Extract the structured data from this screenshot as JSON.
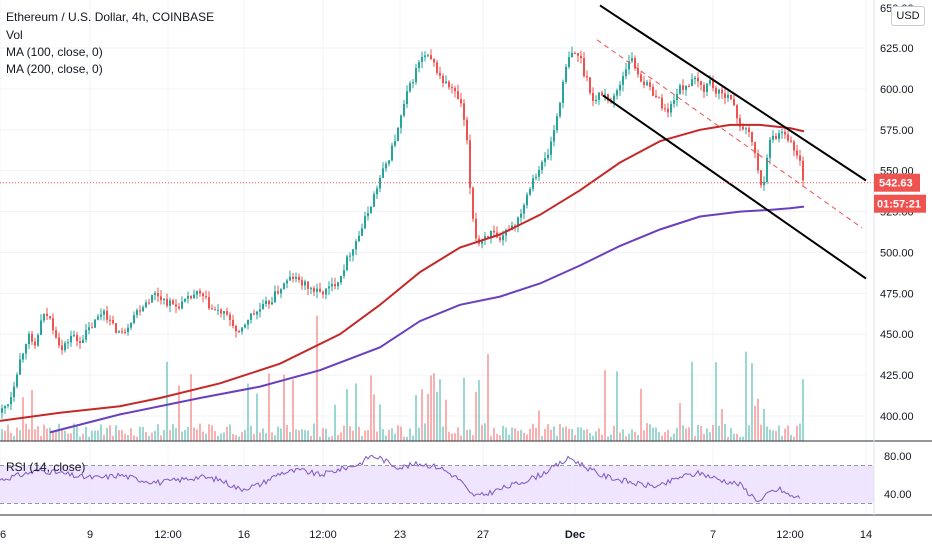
{
  "legend": {
    "title": "Ethereum / U.S. Dollar, 4h, COINBASE",
    "vol": "Vol",
    "ma100": "MA (100, close, 0)",
    "ma200": "MA (200, close, 0)",
    "rsi": "RSI (14, close)"
  },
  "currency_button": "USD",
  "price_labels": {
    "last_price": "542.63",
    "countdown": "01:57:21"
  },
  "colors": {
    "up": "#26a69a",
    "down": "#ef5350",
    "ma100": "#c62828",
    "ma200": "#6a3fbf",
    "rsi_line": "#7e57c2",
    "rsi_band": "#e9dcff",
    "last_price": "#ef5350"
  },
  "chart_data": [
    {
      "type": "candlestick",
      "title": "Ethereum / U.S. Dollar, 4h, COINBASE",
      "ylim": [
        385,
        655
      ],
      "y_ticks": [
        "625.00",
        "600.00",
        "575.00",
        "550.00",
        "525.00",
        "500.00",
        "475.00",
        "450.00",
        "425.00",
        "400.00"
      ],
      "x_ticks": [
        "6",
        "9",
        "12:00",
        "16",
        "12:00",
        "23",
        "27",
        "Dec",
        "7",
        "12:00",
        "14"
      ],
      "last_price": 542.63,
      "anchors": [
        [
          0,
          402
        ],
        [
          10,
          410
        ],
        [
          18,
          430
        ],
        [
          28,
          450
        ],
        [
          34,
          440
        ],
        [
          42,
          460
        ],
        [
          48,
          462
        ],
        [
          56,
          450
        ],
        [
          62,
          440
        ],
        [
          72,
          450
        ],
        [
          78,
          445
        ],
        [
          88,
          452
        ],
        [
          98,
          460
        ],
        [
          104,
          465
        ],
        [
          112,
          455
        ],
        [
          122,
          450
        ],
        [
          134,
          462
        ],
        [
          146,
          470
        ],
        [
          156,
          475
        ],
        [
          166,
          470
        ],
        [
          176,
          467
        ],
        [
          186,
          470
        ],
        [
          196,
          475
        ],
        [
          204,
          472
        ],
        [
          212,
          465
        ],
        [
          222,
          463
        ],
        [
          232,
          458
        ],
        [
          238,
          448
        ],
        [
          248,
          460
        ],
        [
          260,
          465
        ],
        [
          270,
          470
        ],
        [
          280,
          478
        ],
        [
          292,
          485
        ],
        [
          300,
          482
        ],
        [
          310,
          478
        ],
        [
          320,
          475
        ],
        [
          330,
          478
        ],
        [
          340,
          485
        ],
        [
          350,
          500
        ],
        [
          360,
          512
        ],
        [
          370,
          528
        ],
        [
          380,
          545
        ],
        [
          390,
          560
        ],
        [
          398,
          575
        ],
        [
          406,
          595
        ],
        [
          414,
          608
        ],
        [
          420,
          618
        ],
        [
          426,
          620
        ],
        [
          434,
          615
        ],
        [
          442,
          605
        ],
        [
          452,
          600
        ],
        [
          460,
          592
        ],
        [
          466,
          575
        ],
        [
          470,
          540
        ],
        [
          474,
          515
        ],
        [
          478,
          505
        ],
        [
          484,
          510
        ],
        [
          492,
          512
        ],
        [
          500,
          505
        ],
        [
          508,
          515
        ],
        [
          516,
          518
        ],
        [
          524,
          530
        ],
        [
          532,
          545
        ],
        [
          540,
          552
        ],
        [
          548,
          560
        ],
        [
          556,
          580
        ],
        [
          562,
          600
        ],
        [
          568,
          618
        ],
        [
          574,
          622
        ],
        [
          580,
          620
        ],
        [
          584,
          610
        ],
        [
          588,
          605
        ],
        [
          594,
          590
        ],
        [
          600,
          598
        ],
        [
          606,
          596
        ],
        [
          612,
          592
        ],
        [
          618,
          600
        ],
        [
          624,
          610
        ],
        [
          630,
          620
        ],
        [
          636,
          612
        ],
        [
          642,
          605
        ],
        [
          650,
          600
        ],
        [
          656,
          596
        ],
        [
          662,
          590
        ],
        [
          668,
          585
        ],
        [
          674,
          595
        ],
        [
          680,
          600
        ],
        [
          688,
          603
        ],
        [
          696,
          605
        ],
        [
          704,
          600
        ],
        [
          710,
          605
        ],
        [
          716,
          598
        ],
        [
          722,
          596
        ],
        [
          728,
          598
        ],
        [
          734,
          588
        ],
        [
          740,
          578
        ],
        [
          746,
          575
        ],
        [
          752,
          568
        ],
        [
          756,
          558
        ],
        [
          760,
          540
        ],
        [
          764,
          545
        ],
        [
          768,
          565
        ],
        [
          772,
          570
        ],
        [
          778,
          572
        ],
        [
          784,
          575
        ],
        [
          790,
          568
        ],
        [
          796,
          560
        ],
        [
          800,
          555
        ],
        [
          804,
          542.63
        ]
      ],
      "ma100": [
        [
          0,
          397
        ],
        [
          60,
          402
        ],
        [
          120,
          406
        ],
        [
          160,
          411
        ],
        [
          220,
          420
        ],
        [
          280,
          432
        ],
        [
          340,
          450
        ],
        [
          380,
          468
        ],
        [
          420,
          488
        ],
        [
          460,
          503
        ],
        [
          500,
          511
        ],
        [
          540,
          523
        ],
        [
          580,
          538
        ],
        [
          620,
          555
        ],
        [
          660,
          568
        ],
        [
          700,
          575
        ],
        [
          730,
          578
        ],
        [
          760,
          578
        ],
        [
          790,
          576
        ],
        [
          804,
          574
        ]
      ],
      "ma200": [
        [
          50,
          390
        ],
        [
          120,
          401
        ],
        [
          200,
          411
        ],
        [
          260,
          418
        ],
        [
          320,
          428
        ],
        [
          380,
          442
        ],
        [
          420,
          458
        ],
        [
          460,
          468
        ],
        [
          500,
          473
        ],
        [
          540,
          481
        ],
        [
          580,
          492
        ],
        [
          620,
          504
        ],
        [
          660,
          514
        ],
        [
          700,
          522
        ],
        [
          740,
          525
        ],
        [
          770,
          526
        ],
        [
          790,
          527
        ],
        [
          804,
          528
        ]
      ],
      "channel_upper": [
        [
          600,
          651
        ],
        [
          866,
          544
        ]
      ],
      "channel_lower": [
        [
          603,
          596
        ],
        [
          866,
          484
        ]
      ],
      "channel_mid": [
        [
          597,
          630
        ],
        [
          862,
          515
        ]
      ]
    },
    {
      "type": "line",
      "title": "RSI (14, close)",
      "ylim": [
        30,
        90
      ],
      "y_ticks": [
        "80.00",
        "40.00"
      ],
      "band": [
        30,
        70
      ],
      "anchors": [
        [
          0,
          55
        ],
        [
          20,
          60
        ],
        [
          40,
          65
        ],
        [
          60,
          62
        ],
        [
          80,
          58
        ],
        [
          100,
          57
        ],
        [
          120,
          60
        ],
        [
          140,
          55
        ],
        [
          160,
          52
        ],
        [
          180,
          55
        ],
        [
          200,
          58
        ],
        [
          220,
          55
        ],
        [
          240,
          45
        ],
        [
          260,
          50
        ],
        [
          280,
          62
        ],
        [
          300,
          65
        ],
        [
          320,
          60
        ],
        [
          340,
          66
        ],
        [
          360,
          72
        ],
        [
          370,
          80
        ],
        [
          380,
          78
        ],
        [
          390,
          72
        ],
        [
          400,
          68
        ],
        [
          420,
          72
        ],
        [
          440,
          68
        ],
        [
          460,
          55
        ],
        [
          470,
          40
        ],
        [
          480,
          38
        ],
        [
          500,
          45
        ],
        [
          520,
          52
        ],
        [
          540,
          60
        ],
        [
          560,
          72
        ],
        [
          570,
          78
        ],
        [
          580,
          72
        ],
        [
          600,
          60
        ],
        [
          620,
          55
        ],
        [
          640,
          50
        ],
        [
          660,
          48
        ],
        [
          680,
          58
        ],
        [
          700,
          62
        ],
        [
          720,
          55
        ],
        [
          740,
          50
        ],
        [
          750,
          40
        ],
        [
          760,
          32
        ],
        [
          770,
          42
        ],
        [
          780,
          45
        ],
        [
          790,
          38
        ],
        [
          800,
          36
        ]
      ]
    }
  ]
}
